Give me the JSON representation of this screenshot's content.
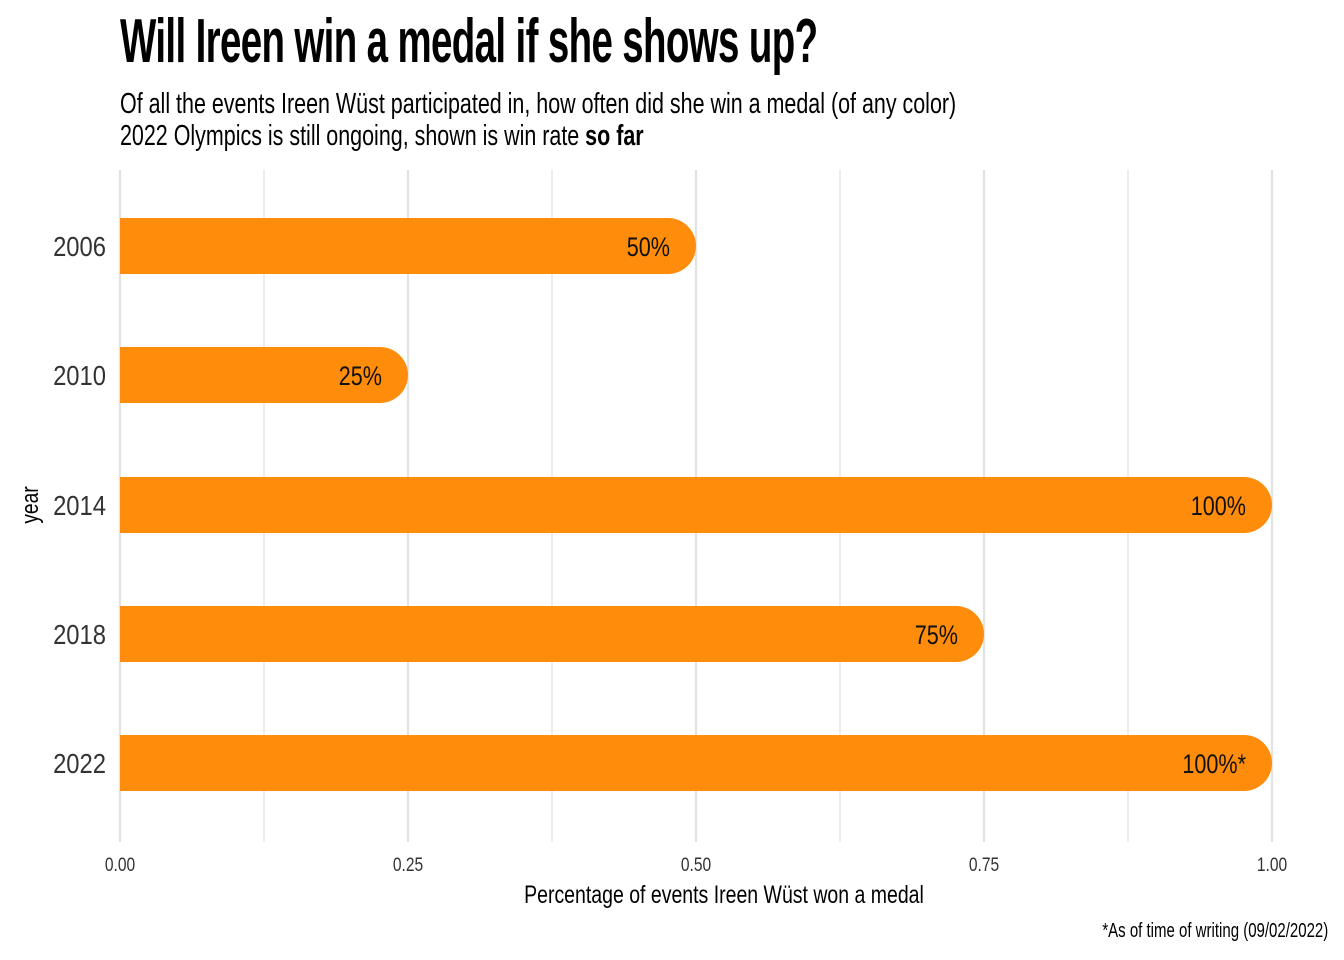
{
  "title": "Will Ireen win a medal if she shows up?",
  "subtitle_line1": "Of all the events Ireen Wüst participated in, how often did she win a medal (of any color)",
  "subtitle_line2_prefix": "2022 Olympics is still ongoing, shown is win rate ",
  "subtitle_line2_bold": "so far",
  "caption": "*As of time of writing (09/02/2022)",
  "colors": {
    "bar": "#FF8C0A",
    "grid": "#E3E3E3",
    "text": "#333333"
  },
  "chart_data": {
    "type": "bar",
    "orientation": "horizontal",
    "categories": [
      "2006",
      "2010",
      "2014",
      "2018",
      "2022"
    ],
    "values": [
      0.5,
      0.25,
      1.0,
      0.75,
      1.0
    ],
    "data_labels": [
      "50%",
      "25%",
      "100%",
      "75%",
      "100%*"
    ],
    "xlabel": "Percentage of events Ireen Wüst won a medal",
    "ylabel": "year",
    "xlim": [
      0,
      1
    ],
    "xticks": [
      0,
      0.25,
      0.5,
      0.75,
      1.0
    ],
    "xtick_labels": [
      "0.00",
      "0.25",
      "0.50",
      "0.75",
      "1.00"
    ],
    "grid": true,
    "legend": "none"
  }
}
